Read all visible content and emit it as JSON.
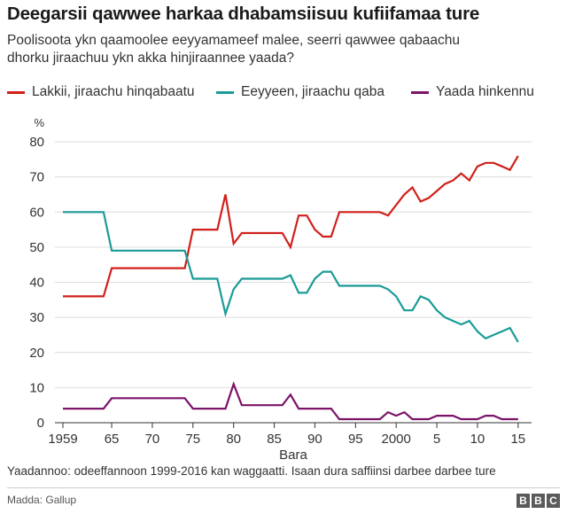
{
  "header": {
    "title": "Deegarsii qawwee harkaa dhabamsiisuu kufiifamaa ture",
    "subtitle": "Poolisoota ykn qaamoolee eeyyamameef malee, seerri qawwee qabaachu dhorku jiraachuu ykn akka hinjiraannee yaada?"
  },
  "footer": {
    "note": "Yaadannoo: odeeffannoon 1999-2016 kan waggaatti. Isaan dura saffiinsi darbee darbee ture",
    "source": "Madda: Gallup",
    "logo_letters": [
      "B",
      "B",
      "C"
    ]
  },
  "chart_data": {
    "type": "line",
    "title": "Deegarsii qawwee harkaa dhabamsiisuu kufiifamaa ture",
    "xlabel": "Bara",
    "ylabel": "%",
    "xlim": [
      1959,
      2016
    ],
    "ylim": [
      0,
      80
    ],
    "yticks": [
      0,
      10,
      20,
      30,
      40,
      50,
      60,
      70,
      80
    ],
    "y_gridlines": true,
    "legend_position": "top",
    "xticks": [
      {
        "x": 1959,
        "label": "1959"
      },
      {
        "x": 1965,
        "label": "65"
      },
      {
        "x": 1970,
        "label": "70"
      },
      {
        "x": 1975,
        "label": "75"
      },
      {
        "x": 1980,
        "label": "80"
      },
      {
        "x": 1985,
        "label": "85"
      },
      {
        "x": 1990,
        "label": "90"
      },
      {
        "x": 1995,
        "label": "95"
      },
      {
        "x": 2000,
        "label": "2000"
      },
      {
        "x": 2005,
        "label": "5"
      },
      {
        "x": 2010,
        "label": "10"
      },
      {
        "x": 2015,
        "label": "15"
      }
    ],
    "series": [
      {
        "name": "Lakkii, jiraachu hinqabaatu",
        "color": "#d0201a",
        "points": [
          [
            1959,
            36
          ],
          [
            1964,
            36
          ],
          [
            1965,
            44
          ],
          [
            1974,
            44
          ],
          [
            1975,
            55
          ],
          [
            1978,
            55
          ],
          [
            1979,
            65
          ],
          [
            1980,
            51
          ],
          [
            1981,
            54
          ],
          [
            1986,
            54
          ],
          [
            1987,
            50
          ],
          [
            1988,
            59
          ],
          [
            1989,
            59
          ],
          [
            1990,
            55
          ],
          [
            1991,
            53
          ],
          [
            1992,
            53
          ],
          [
            1993,
            60
          ],
          [
            1998,
            60
          ],
          [
            1999,
            59
          ],
          [
            2000,
            62
          ],
          [
            2001,
            65
          ],
          [
            2002,
            67
          ],
          [
            2003,
            63
          ],
          [
            2004,
            64
          ],
          [
            2005,
            66
          ],
          [
            2006,
            68
          ],
          [
            2007,
            69
          ],
          [
            2008,
            71
          ],
          [
            2009,
            69
          ],
          [
            2010,
            73
          ],
          [
            2011,
            74
          ],
          [
            2012,
            74
          ],
          [
            2013,
            73
          ],
          [
            2014,
            72
          ],
          [
            2015,
            76
          ]
        ]
      },
      {
        "name": "Eeyyeen, jiraachu qaba",
        "color": "#1a9b97",
        "points": [
          [
            1959,
            60
          ],
          [
            1964,
            60
          ],
          [
            1965,
            49
          ],
          [
            1974,
            49
          ],
          [
            1975,
            41
          ],
          [
            1978,
            41
          ],
          [
            1979,
            31
          ],
          [
            1980,
            38
          ],
          [
            1981,
            41
          ],
          [
            1986,
            41
          ],
          [
            1987,
            42
          ],
          [
            1988,
            37
          ],
          [
            1989,
            37
          ],
          [
            1990,
            41
          ],
          [
            1991,
            43
          ],
          [
            1992,
            43
          ],
          [
            1993,
            39
          ],
          [
            1998,
            39
          ],
          [
            1999,
            38
          ],
          [
            2000,
            36
          ],
          [
            2001,
            32
          ],
          [
            2002,
            32
          ],
          [
            2003,
            36
          ],
          [
            2004,
            35
          ],
          [
            2005,
            32
          ],
          [
            2006,
            30
          ],
          [
            2007,
            29
          ],
          [
            2008,
            28
          ],
          [
            2009,
            29
          ],
          [
            2010,
            26
          ],
          [
            2011,
            24
          ],
          [
            2012,
            25
          ],
          [
            2013,
            26
          ],
          [
            2014,
            27
          ],
          [
            2015,
            23
          ]
        ]
      },
      {
        "name": "Yaada hinkennu",
        "color": "#7b1368",
        "points": [
          [
            1959,
            4
          ],
          [
            1964,
            4
          ],
          [
            1965,
            7
          ],
          [
            1974,
            7
          ],
          [
            1975,
            4
          ],
          [
            1978,
            4
          ],
          [
            1979,
            4
          ],
          [
            1980,
            11
          ],
          [
            1981,
            5
          ],
          [
            1986,
            5
          ],
          [
            1987,
            8
          ],
          [
            1988,
            4
          ],
          [
            1989,
            4
          ],
          [
            1990,
            4
          ],
          [
            1991,
            4
          ],
          [
            1992,
            4
          ],
          [
            1993,
            1
          ],
          [
            1998,
            1
          ],
          [
            1999,
            3
          ],
          [
            2000,
            2
          ],
          [
            2001,
            3
          ],
          [
            2002,
            1
          ],
          [
            2003,
            1
          ],
          [
            2004,
            1
          ],
          [
            2005,
            2
          ],
          [
            2006,
            2
          ],
          [
            2007,
            2
          ],
          [
            2008,
            1
          ],
          [
            2009,
            1
          ],
          [
            2010,
            1
          ],
          [
            2011,
            2
          ],
          [
            2012,
            2
          ],
          [
            2013,
            1
          ],
          [
            2014,
            1
          ],
          [
            2015,
            1
          ]
        ]
      }
    ]
  }
}
